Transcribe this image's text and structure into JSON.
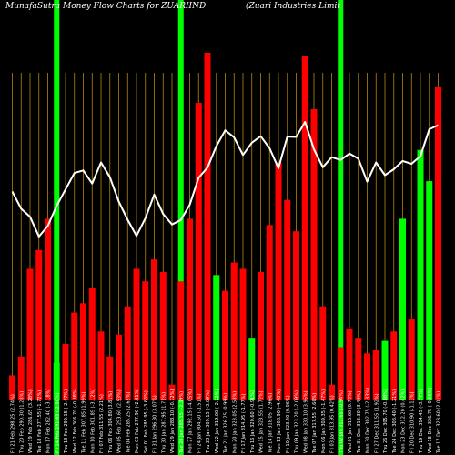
{
  "chart_data": {
    "type": "bar",
    "title_left": "MunafaSutra  Money Flow  Charts for ZUARIIND",
    "title_right": "(Zuari    Industries Limit",
    "colors": {
      "background": "#000000",
      "up": "#00ff00",
      "down": "#ff0000",
      "price_line": "#ffffff",
      "grid": "#b8860b",
      "highlight": "#00ff00"
    },
    "grid": true,
    "highlight_indices": [
      5,
      19,
      37
    ],
    "categories": [
      "Fri 21 Feb 298.25 (2.74%)",
      "Thu 20 Feb 290.30 (1.28%)",
      "Wed 19 Feb 286.65 (3.28%)",
      "Tue 18 Feb 277.55 (-1.72%)",
      "Mon 17 Feb 282.40 (-3.18%)",
      "Fri 14 Feb 291.65 (-2.50%)",
      "Thu 13 Feb 299.15 (-2.47%)",
      "Wed 12 Feb 306.70 (-0.38%)",
      "Tue 11 Feb 307.85 (1.99%)",
      "Mon 10 Feb 301.85 (-3.12%)",
      "Fri 07 Feb 311.55 (2.21%)",
      "Thu 06 Feb 304.80 (3.81%)",
      "Wed 05 Feb 293.60 (2.93%)",
      "Tue 04 Feb 285.25 (2.65%)",
      "Mon 03 Feb 277.90 (-2.81%)",
      "Sat 01 Feb 285.95 (-3.66%)",
      "Fri 31 Jan 296.80 (3.07%)",
      "Thu 30 Jan 287.95 (1.71%)",
      "Wed 29 Jan 283.10 (-0.72%)",
      "Tue 28 Jan 285.15 (-2.39%)",
      "Mon 27 Jan 292.15 (-4.05%)",
      "Fri 24 Jan 304.50 (-1.51%)",
      "Thu 23 Jan 309.15 (-3.09%)",
      "Wed 22 Jan 319.00 (-2.22%)",
      "Tue 21 Jan 326.25 (0.99%)",
      "Mon 20 Jan 323.05 (2.58%)",
      "Fri 17 Jan 314.95 (-1.77%)",
      "Thu 16 Jan 320.60 (-0.91%)",
      "Wed 15 Jan 323.55 (1.72%)",
      "Tue 14 Jan 318.05 (2.96%)",
      "Mon 13 Jan 308.90 (-4.48%)",
      "Fri 10 Jan 323.40 (0.06%)",
      "Thu 09 Jan 323.20 (-2.09%)",
      "Wed 08 Jan 330.10 (3.95%)",
      "Tue 07 Jan 317.55 (2.66%)",
      "Mon 06 Jan 309.35 (-1.47%)",
      "Fri 03 Jan 313.95 (0.42%)",
      "Thu 02 Jan 312.65 (-0.94%)",
      "Wed 01 Jan 315.60 (0.73%)",
      "Tue 31 Dec 313.30 (3.49%)",
      "Mon 30 Dec 302.75 (-2.83%)",
      "Fri 27 Dec 311.55 (1.92%)",
      "Thu 26 Dec 305.70 (-0.88%)",
      "Tue 24 Dec 308.40 (-1.21%)",
      "Mon 23 Dec 312.20 (0.42%)",
      "Fri 20 Dec 310.90 (-1.13%)",
      "Thu 19 Dec 314.45 (-3.77%)",
      "Wed 18 Dec 326.75 (-0.56%)",
      "Tue 17 Dec 328.60 (2.01%)"
    ],
    "series": [
      {
        "values": [
          -8,
          -14,
          -42,
          -48,
          -58,
          -12,
          -18,
          -28,
          -31,
          -36,
          -22,
          -14,
          -21,
          -30,
          -42,
          -38,
          -45,
          -41,
          -5,
          -38,
          -58,
          -95,
          -111,
          -40,
          -35,
          -44,
          -42,
          -20,
          -41,
          -56,
          -76,
          -64,
          -54,
          -110,
          -93,
          -30,
          -5,
          -17,
          -23,
          -20,
          -15,
          16,
          19,
          22,
          58,
          26,
          80,
          70,
          100
        ],
        "up": [
          false,
          false,
          false,
          false,
          false,
          true,
          false,
          false,
          false,
          false,
          false,
          false,
          false,
          false,
          false,
          false,
          false,
          false,
          false,
          false,
          false,
          false,
          false,
          true,
          false,
          false,
          false,
          true,
          false,
          false,
          false,
          false,
          false,
          false,
          false,
          false,
          false,
          false,
          false,
          false,
          false,
          false,
          true,
          false,
          true,
          false,
          true,
          true,
          false
        ]
      },
      {
        "values": [
          298.25,
          290.3,
          286.65,
          277.55,
          282.4,
          291.65,
          299.15,
          306.7,
          307.85,
          301.85,
          311.55,
          304.8,
          293.6,
          285.25,
          277.9,
          285.95,
          296.8,
          287.95,
          283.1,
          285.15,
          292.15,
          304.5,
          309.15,
          319.0,
          326.25,
          323.05,
          314.95,
          320.6,
          323.55,
          318.05,
          308.9,
          323.4,
          323.2,
          330.1,
          317.55,
          309.35,
          313.95,
          312.65,
          315.6,
          313.3,
          302.75,
          311.55,
          305.7,
          308.4,
          312.2,
          310.9,
          314.45,
          326.75,
          328.6
        ]
      }
    ]
  }
}
